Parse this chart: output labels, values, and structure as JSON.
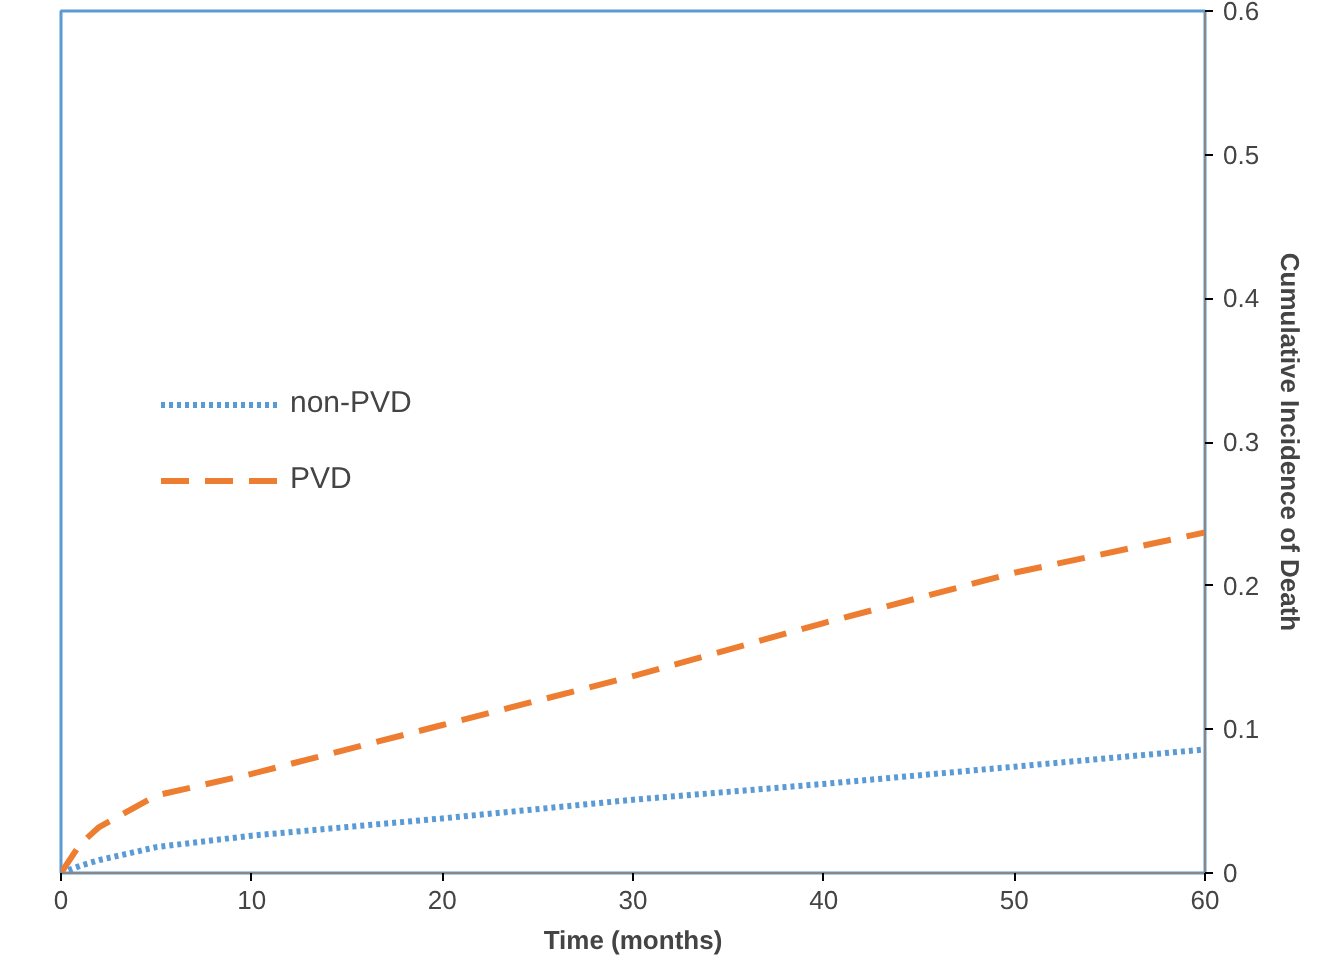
{
  "chart_data": {
    "type": "line",
    "xlabel": "Time (months)",
    "y2label": "Cumulative Incidence of Death",
    "x": [
      0,
      1,
      2,
      5,
      10,
      20,
      30,
      40,
      50,
      60
    ],
    "series": [
      {
        "name": "non-PVD",
        "color": "#5b9bd5",
        "line_style": "dotted",
        "axis": "y2",
        "values": [
          0,
          0.005,
          0.009,
          0.018,
          0.026,
          0.038,
          0.051,
          0.062,
          0.074,
          0.086
        ]
      },
      {
        "name": "PVD",
        "color": "#ed7d31",
        "line_style": "dashed",
        "axis": "y2",
        "values": [
          0,
          0.02,
          0.032,
          0.054,
          0.069,
          0.103,
          0.137,
          0.174,
          0.209,
          0.237
        ]
      }
    ],
    "xlim": [
      0,
      60
    ],
    "xticks": [
      0,
      10,
      20,
      30,
      40,
      50,
      60
    ],
    "y2lim": [
      0,
      0.6
    ],
    "y2ticks": [
      0,
      0.1,
      0.2,
      0.3,
      0.4,
      0.5,
      0.6
    ],
    "grid": false,
    "legend": "left",
    "marker": "none"
  }
}
